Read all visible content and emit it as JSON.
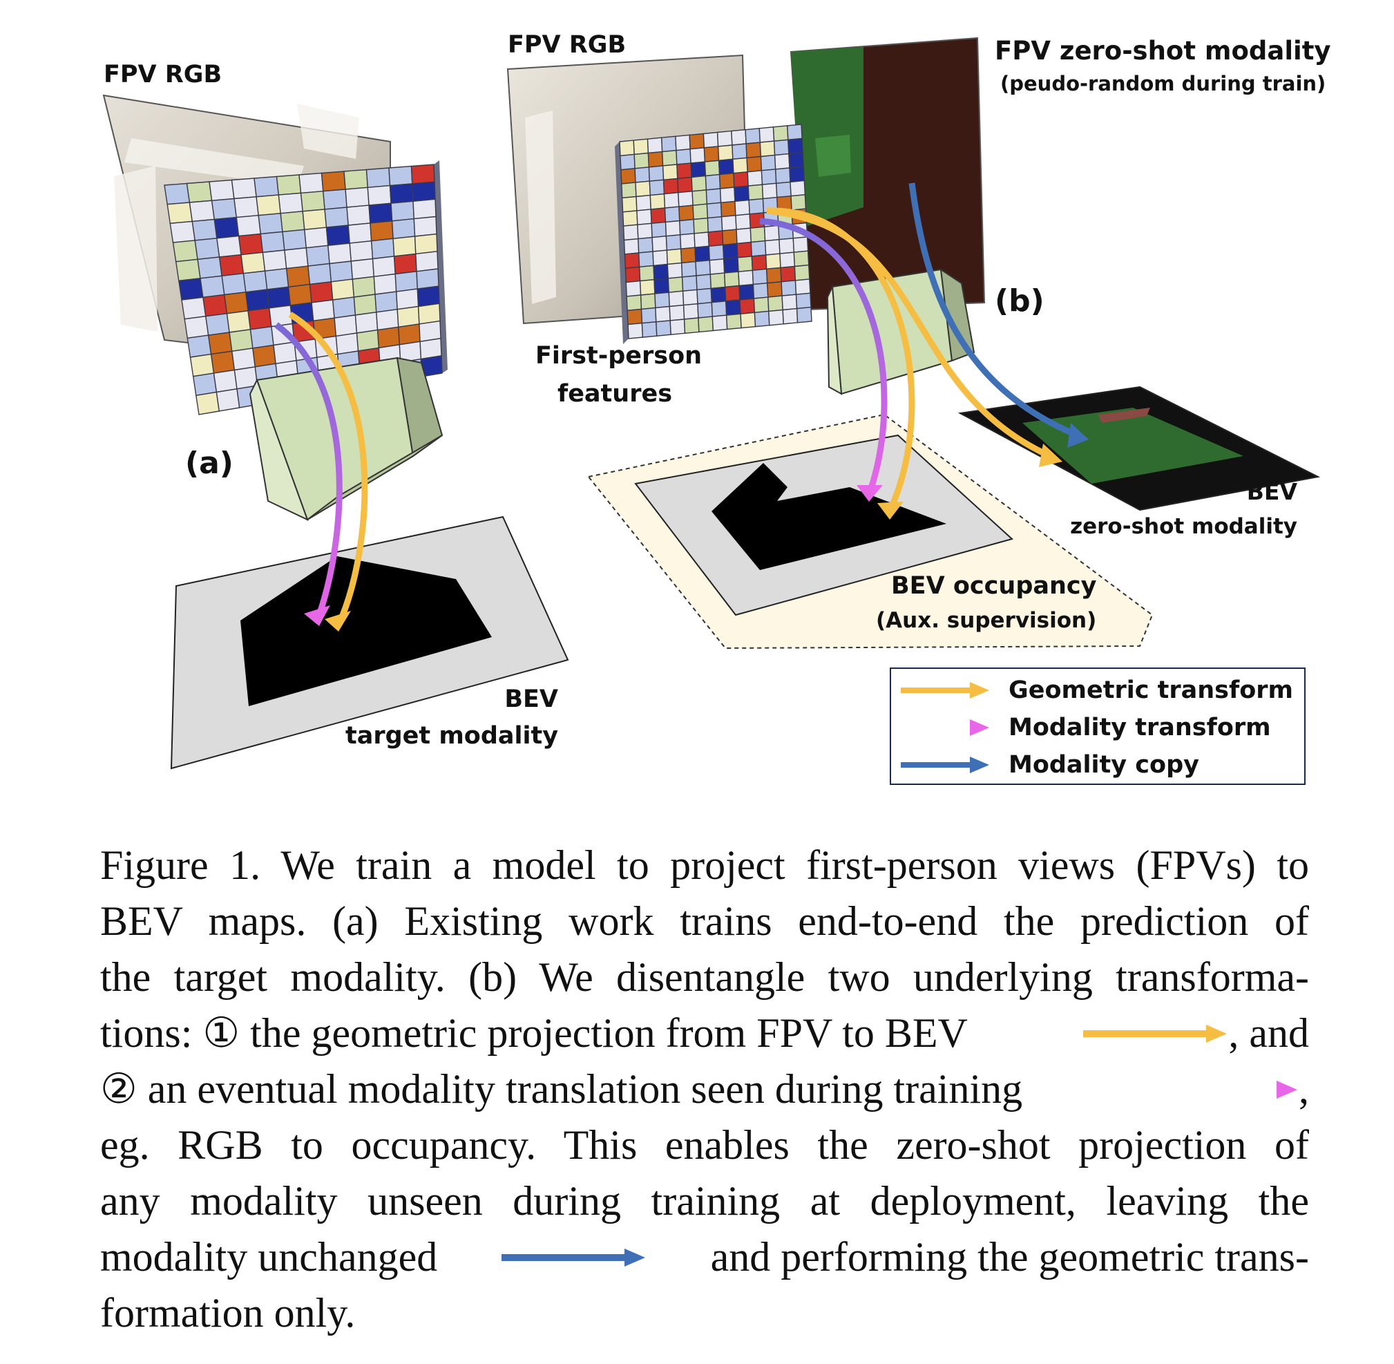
{
  "figure": {
    "labels": {
      "fpv_rgb_a": "FPV RGB",
      "fpv_rgb_b": "FPV RGB",
      "zero_shot_title": "FPV zero-shot modality",
      "zero_shot_sub": "(peudo-random during train)",
      "panel_a": "(a)",
      "panel_b": "(b)",
      "first_person_line1": "First-person",
      "first_person_line2": "features",
      "bev_zero_line1": "BEV",
      "bev_zero_line2": "zero-shot modality",
      "bev_occ_line1": "BEV occupancy",
      "bev_occ_line2": "(Aux. supervision)",
      "bev_target_line1": "BEV",
      "bev_target_line2": "target modality"
    },
    "legend": [
      {
        "label": "Geometric transform",
        "color": "#f5be42",
        "icon": "geometric-transform-arrow-icon"
      },
      {
        "label": "Modality transform",
        "color": "#b45fe0",
        "icon": "modality-transform-arrow-icon"
      },
      {
        "label": "Modality copy",
        "color": "#3f6fb5",
        "icon": "modality-copy-arrow-icon"
      }
    ],
    "colors": {
      "geometric": "#f5be42",
      "modality_transform_start": "#7b68d6",
      "modality_transform_end": "#e866e8",
      "modality_copy": "#3f6fb5",
      "occupancy": "#000000",
      "bev_floor": "#dcdcdc",
      "zero_shot_green": "#2f6a2e",
      "zero_shot_brown": "#3b1a14"
    }
  },
  "caption": {
    "line1": "Figure 1. We train a model to project first-person views (FPVs) to",
    "line2": "BEV maps. (a) Existing work trains end-to-end the prediction of",
    "line3": "the target modality. (b) We disentangle two underlying transforma-",
    "line4a": "tions: ① the geometric projection from FPV to BEV",
    "line4b": ", and",
    "line5a": "② an eventual modality translation seen during training",
    "line5b": ",",
    "line6": "eg. RGB to occupancy. This enables the zero-shot projection of",
    "line7": "any modality unseen during training at deployment, leaving the",
    "line8a": "modality unchanged",
    "line8b": "and performing the geometric trans-",
    "line9": "formation only."
  }
}
